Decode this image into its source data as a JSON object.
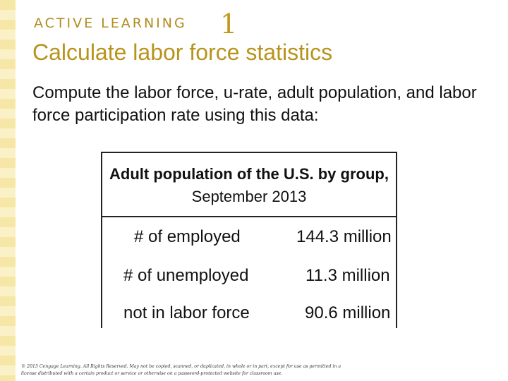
{
  "slide": {
    "kicker": "ACTIVE LEARNING",
    "number": "1",
    "title": "Calculate labor force statistics",
    "prompt": "Compute the labor force, u-rate, adult population, and labor force participation rate using this data:"
  },
  "table": {
    "header_bold": "Adult population of the U.S. by group,",
    "header_normal": "September 2013",
    "rows": [
      {
        "label": "# of employed",
        "value": "144.3 million"
      },
      {
        "label": "# of unemployed",
        "value": "11.3 million"
      },
      {
        "label": "not in labor force",
        "value": "90.6 million"
      }
    ]
  },
  "footer": {
    "copyright": "© 2015 Cengage Learning. All Rights Reserved. May not be copied, scanned, or duplicated, in whole or in part, except for use as permitted in a license distributed with a certain product or service or otherwise on a password-protected website for classroom use."
  },
  "colors": {
    "accent": "#b8931c",
    "stripe_light": "#fbf1c8",
    "stripe_dark": "#f6e7a6"
  }
}
